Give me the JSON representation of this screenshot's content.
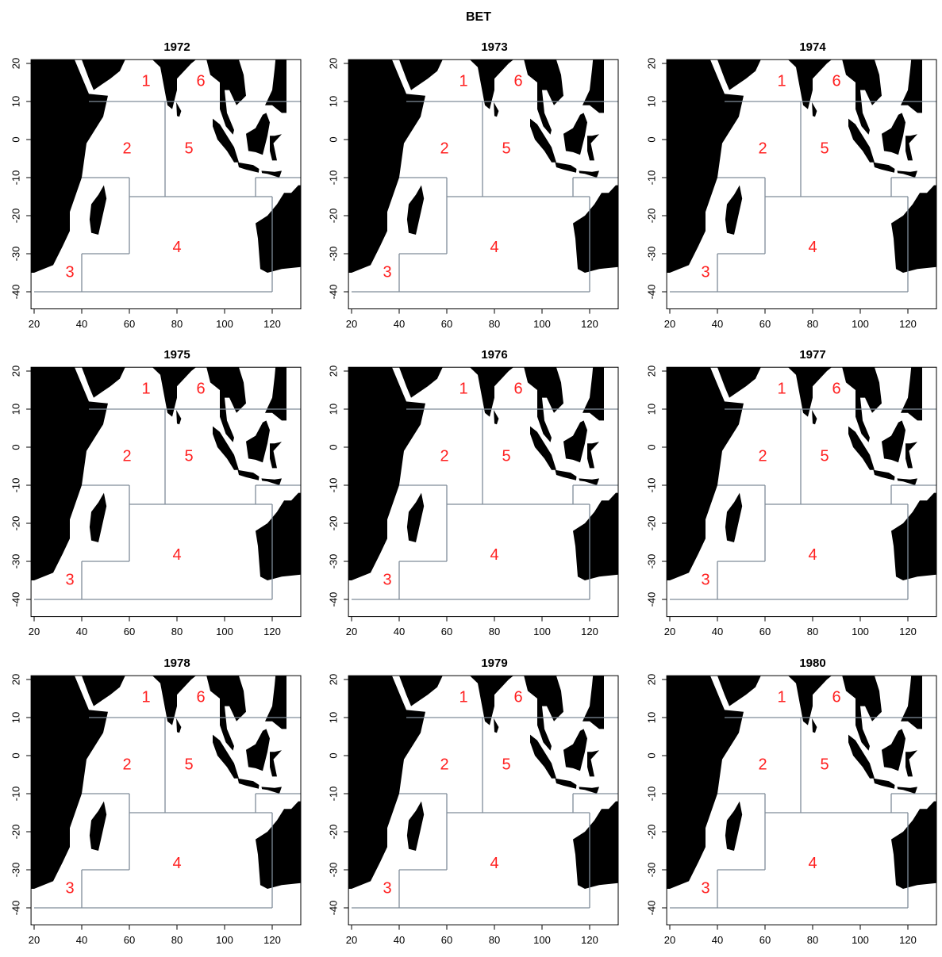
{
  "title": "BET",
  "panels": [
    {
      "title": "1972"
    },
    {
      "title": "1973"
    },
    {
      "title": "1974"
    },
    {
      "title": "1975"
    },
    {
      "title": "1976"
    },
    {
      "title": "1977"
    },
    {
      "title": "1978"
    },
    {
      "title": "1979"
    },
    {
      "title": "1980"
    }
  ],
  "xticks": [
    20,
    40,
    60,
    80,
    100,
    120
  ],
  "yticks": [
    20,
    10,
    0,
    -10,
    -20,
    -30,
    -40
  ],
  "regions": [
    "1",
    "2",
    "3",
    "4",
    "5",
    "6"
  ]
}
